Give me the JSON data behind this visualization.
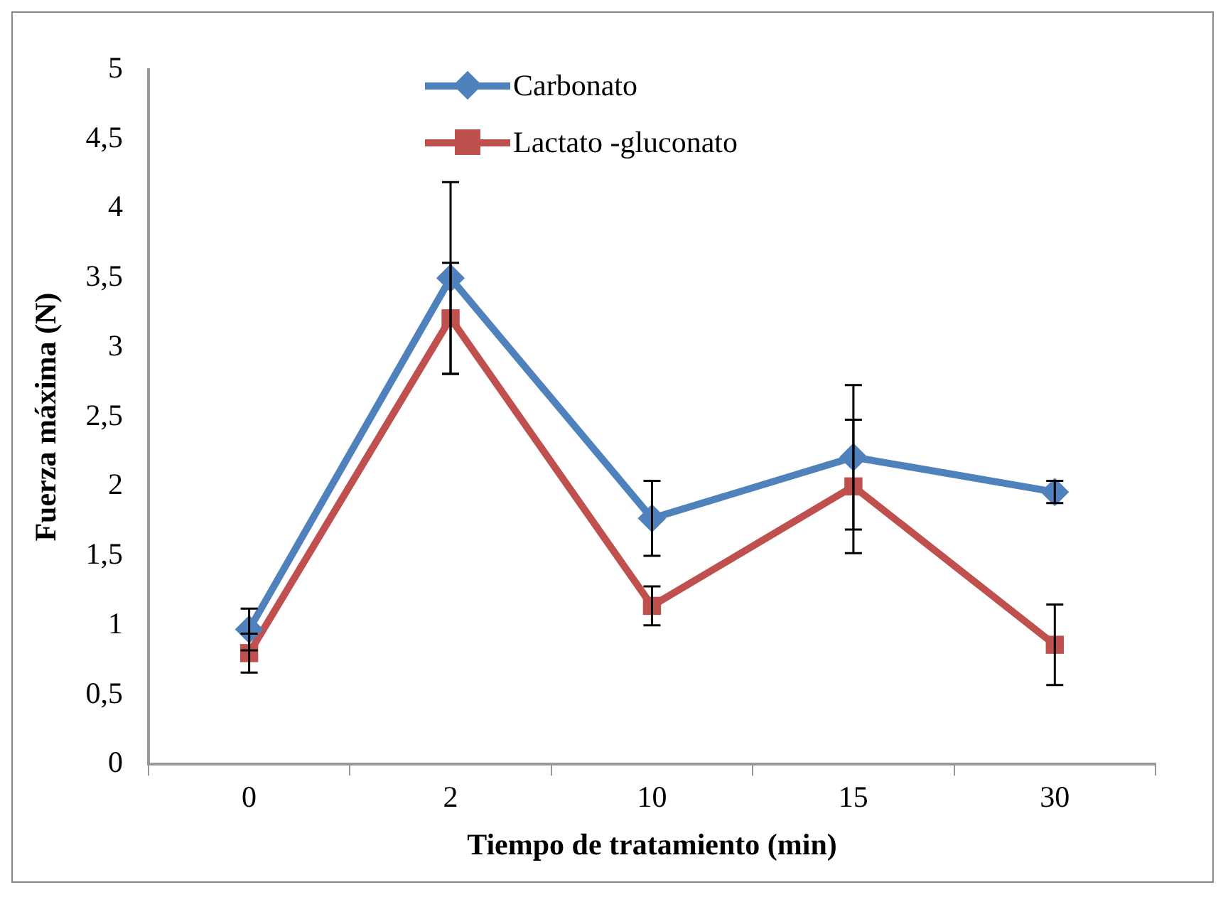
{
  "chart_data": {
    "type": "line",
    "xlabel": "Tiempo de tratamiento (min)",
    "ylabel": "Fuerza máxima (N)",
    "categories": [
      "0",
      "2",
      "10",
      "15",
      "30"
    ],
    "series": [
      {
        "name": "Carbonato",
        "color": "#4f81bd",
        "marker": "diamond",
        "values": [
          0.97,
          3.5,
          1.77,
          2.21,
          1.96
        ],
        "errors": [
          0.15,
          0.69,
          0.27,
          0.52,
          0.08
        ]
      },
      {
        "name": "Lactato -gluconato",
        "color": "#c0504d",
        "marker": "square",
        "values": [
          0.8,
          3.21,
          1.14,
          2.0,
          0.86
        ],
        "errors": [
          0.14,
          0.4,
          0.14,
          0.48,
          0.29
        ]
      }
    ],
    "ylim": [
      0,
      5
    ],
    "yticks": [
      0,
      {
        "value": 0.5,
        "label": "0,5"
      },
      1,
      {
        "value": 1.5,
        "label": "1,5"
      },
      2,
      {
        "value": 2.5,
        "label": "2,5"
      },
      3,
      {
        "value": 3.5,
        "label": "3,5"
      },
      4,
      {
        "value": 4.5,
        "label": "4,5"
      },
      5
    ],
    "grid": false,
    "legend": "top"
  }
}
